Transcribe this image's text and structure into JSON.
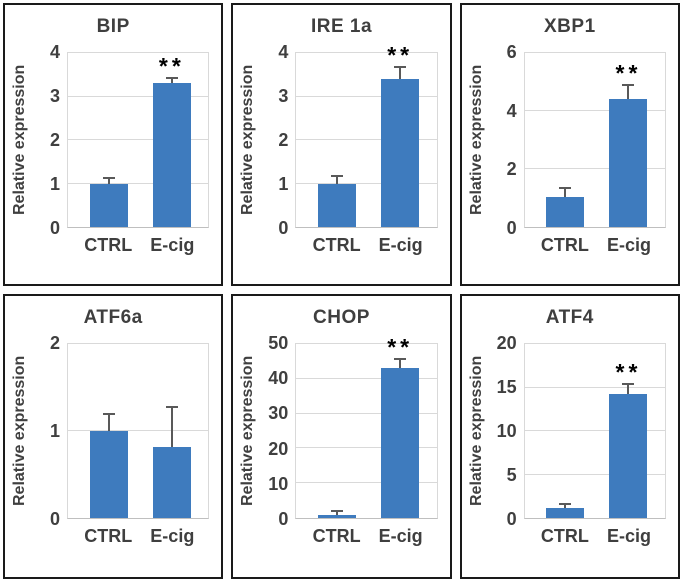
{
  "figure": {
    "ylabel": "Relative expression",
    "categories": [
      "CTRL",
      "E-cig"
    ],
    "significance_marker": "**"
  },
  "colors": {
    "bar": "#3e7bbe",
    "gridline": "#d9d9d9",
    "axis_line": "#bfbfbf",
    "error_bar": "#595959",
    "text": "#3f3f3f",
    "significance": "#000000",
    "panel_border": "#1a1a1a"
  },
  "chart_data": [
    {
      "type": "bar",
      "title": "BIP",
      "ylabel": "Relative expression",
      "categories": [
        "CTRL",
        "E-cig"
      ],
      "values": [
        1.0,
        3.3
      ],
      "errors": [
        0.1,
        0.1
      ],
      "ylim": [
        0,
        4
      ],
      "yticks": [
        0,
        1,
        2,
        3,
        4
      ],
      "significance": [
        null,
        "**"
      ],
      "grid": true,
      "legend": false
    },
    {
      "type": "bar",
      "title": "IRE 1a",
      "ylabel": "Relative expression",
      "categories": [
        "CTRL",
        "E-cig"
      ],
      "values": [
        1.0,
        3.4
      ],
      "errors": [
        0.15,
        0.25
      ],
      "ylim": [
        0,
        4
      ],
      "yticks": [
        0,
        1,
        2,
        3,
        4
      ],
      "significance": [
        null,
        "**"
      ],
      "grid": true,
      "legend": false
    },
    {
      "type": "bar",
      "title": "XBP1",
      "ylabel": "Relative expression",
      "categories": [
        "CTRL",
        "E-cig"
      ],
      "values": [
        1.05,
        4.4
      ],
      "errors": [
        0.25,
        0.45
      ],
      "ylim": [
        0,
        6
      ],
      "yticks": [
        0,
        2,
        4,
        6
      ],
      "significance": [
        null,
        "**"
      ],
      "grid": true,
      "legend": false
    },
    {
      "type": "bar",
      "title": "ATF6a",
      "ylabel": "Relative expression",
      "categories": [
        "CTRL",
        "E-cig"
      ],
      "values": [
        1.0,
        0.82
      ],
      "errors": [
        0.18,
        0.45
      ],
      "ylim": [
        0,
        2
      ],
      "yticks": [
        0,
        1,
        2
      ],
      "significance": [
        null,
        null
      ],
      "grid": true,
      "legend": false
    },
    {
      "type": "bar",
      "title": "CHOP",
      "ylabel": "Relative expression",
      "categories": [
        "CTRL",
        "E-cig"
      ],
      "values": [
        1.0,
        43.0
      ],
      "errors": [
        0.6,
        2.5
      ],
      "ylim": [
        0,
        50
      ],
      "yticks": [
        0,
        10,
        20,
        30,
        40,
        50
      ],
      "significance": [
        null,
        "**"
      ],
      "grid": true,
      "legend": false
    },
    {
      "type": "bar",
      "title": "ATF4",
      "ylabel": "Relative expression",
      "categories": [
        "CTRL",
        "E-cig"
      ],
      "values": [
        1.1,
        14.3
      ],
      "errors": [
        0.4,
        1.0
      ],
      "ylim": [
        0,
        20
      ],
      "yticks": [
        0,
        5,
        10,
        15,
        20
      ],
      "significance": [
        null,
        "**"
      ],
      "grid": true,
      "legend": false
    }
  ]
}
